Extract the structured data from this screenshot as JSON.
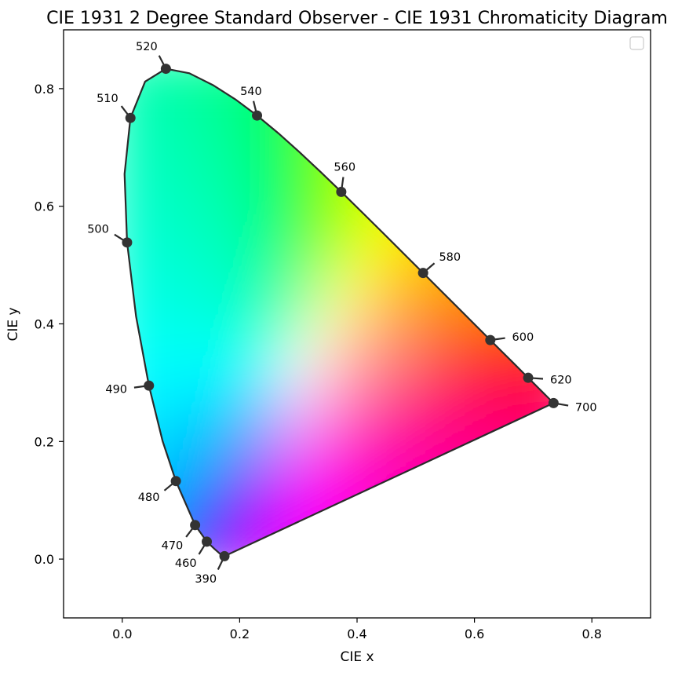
{
  "chart_data": {
    "type": "scatter",
    "title": "CIE 1931 2 Degree Standard Observer - CIE 1931 Chromaticity Diagram",
    "xlabel": "CIE x",
    "ylabel": "CIE y",
    "xlim": [
      -0.1,
      0.9
    ],
    "ylim": [
      -0.1,
      0.9
    ],
    "xticks": [
      "0.0",
      "0.2",
      "0.4",
      "0.6",
      "0.8"
    ],
    "yticks": [
      "0.0",
      "0.2",
      "0.4",
      "0.6",
      "0.8"
    ],
    "grid": false,
    "legend": "top-right, empty",
    "marker_color": "#333333",
    "spectral_locus": [
      {
        "x": 0.1741,
        "y": 0.005
      },
      {
        "x": 0.1738,
        "y": 0.0049
      },
      {
        "x": 0.1733,
        "y": 0.0048
      },
      {
        "x": 0.1726,
        "y": 0.0048
      },
      {
        "x": 0.1714,
        "y": 0.0051
      },
      {
        "x": 0.1689,
        "y": 0.0069
      },
      {
        "x": 0.1644,
        "y": 0.0109
      },
      {
        "x": 0.1566,
        "y": 0.0177
      },
      {
        "x": 0.144,
        "y": 0.0297
      },
      {
        "x": 0.1241,
        "y": 0.0578
      },
      {
        "x": 0.0913,
        "y": 0.1327
      },
      {
        "x": 0.0687,
        "y": 0.2007
      },
      {
        "x": 0.0454,
        "y": 0.295
      },
      {
        "x": 0.0235,
        "y": 0.4127
      },
      {
        "x": 0.0082,
        "y": 0.5384
      },
      {
        "x": 0.0039,
        "y": 0.6548
      },
      {
        "x": 0.0139,
        "y": 0.7502
      },
      {
        "x": 0.0389,
        "y": 0.812
      },
      {
        "x": 0.0743,
        "y": 0.8338
      },
      {
        "x": 0.1142,
        "y": 0.8262
      },
      {
        "x": 0.1547,
        "y": 0.8059
      },
      {
        "x": 0.1929,
        "y": 0.7816
      },
      {
        "x": 0.2296,
        "y": 0.7543
      },
      {
        "x": 0.2658,
        "y": 0.7243
      },
      {
        "x": 0.3016,
        "y": 0.6923
      },
      {
        "x": 0.3373,
        "y": 0.6589
      },
      {
        "x": 0.3731,
        "y": 0.6245
      },
      {
        "x": 0.4087,
        "y": 0.5896
      },
      {
        "x": 0.4441,
        "y": 0.5547
      },
      {
        "x": 0.4788,
        "y": 0.5202
      },
      {
        "x": 0.5125,
        "y": 0.4866
      },
      {
        "x": 0.5448,
        "y": 0.4544
      },
      {
        "x": 0.5752,
        "y": 0.4242
      },
      {
        "x": 0.6029,
        "y": 0.3965
      },
      {
        "x": 0.627,
        "y": 0.3725
      },
      {
        "x": 0.6482,
        "y": 0.3514
      },
      {
        "x": 0.6658,
        "y": 0.334
      },
      {
        "x": 0.6801,
        "y": 0.3197
      },
      {
        "x": 0.6915,
        "y": 0.3083
      },
      {
        "x": 0.7006,
        "y": 0.2993
      },
      {
        "x": 0.7079,
        "y": 0.292
      },
      {
        "x": 0.714,
        "y": 0.2859
      },
      {
        "x": 0.719,
        "y": 0.2809
      },
      {
        "x": 0.723,
        "y": 0.277
      },
      {
        "x": 0.726,
        "y": 0.274
      },
      {
        "x": 0.7283,
        "y": 0.2717
      },
      {
        "x": 0.73,
        "y": 0.27
      },
      {
        "x": 0.7311,
        "y": 0.2689
      },
      {
        "x": 0.732,
        "y": 0.268
      },
      {
        "x": 0.7327,
        "y": 0.2673
      },
      {
        "x": 0.7334,
        "y": 0.2666
      },
      {
        "x": 0.734,
        "y": 0.266
      },
      {
        "x": 0.7344,
        "y": 0.2656
      },
      {
        "x": 0.7346,
        "y": 0.2654
      },
      {
        "x": 0.7347,
        "y": 0.2653
      }
    ],
    "wavelength_points": [
      {
        "label": "390",
        "x": 0.1741,
        "y": 0.005
      },
      {
        "label": "460",
        "x": 0.144,
        "y": 0.0297
      },
      {
        "label": "470",
        "x": 0.1241,
        "y": 0.0578
      },
      {
        "label": "480",
        "x": 0.0913,
        "y": 0.1327
      },
      {
        "label": "490",
        "x": 0.0454,
        "y": 0.295
      },
      {
        "label": "500",
        "x": 0.0082,
        "y": 0.5384
      },
      {
        "label": "510",
        "x": 0.0139,
        "y": 0.7502
      },
      {
        "label": "520",
        "x": 0.0743,
        "y": 0.8338
      },
      {
        "label": "540",
        "x": 0.2296,
        "y": 0.7543
      },
      {
        "label": "560",
        "x": 0.3731,
        "y": 0.6245
      },
      {
        "label": "580",
        "x": 0.5125,
        "y": 0.4866
      },
      {
        "label": "600",
        "x": 0.627,
        "y": 0.3725
      },
      {
        "label": "620",
        "x": 0.6915,
        "y": 0.3083
      },
      {
        "label": "700",
        "x": 0.7347,
        "y": 0.2653
      }
    ]
  }
}
